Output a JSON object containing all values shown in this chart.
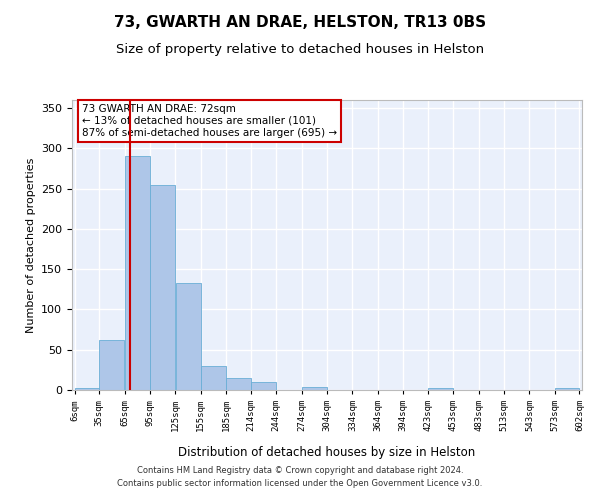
{
  "title1": "73, GWARTH AN DRAE, HELSTON, TR13 0BS",
  "title2": "Size of property relative to detached houses in Helston",
  "xlabel": "Distribution of detached houses by size in Helston",
  "ylabel": "Number of detached properties",
  "footnote1": "Contains HM Land Registry data © Crown copyright and database right 2024.",
  "footnote2": "Contains public sector information licensed under the Open Government Licence v3.0.",
  "annotation_line1": "73 GWARTH AN DRAE: 72sqm",
  "annotation_line2": "← 13% of detached houses are smaller (101)",
  "annotation_line3": "87% of semi-detached houses are larger (695) →",
  "bar_edges": [
    6,
    35,
    65,
    95,
    125,
    155,
    185,
    214,
    244,
    274,
    304,
    334,
    364,
    394,
    423,
    453,
    483,
    513,
    543,
    573,
    602
  ],
  "bar_heights": [
    2,
    62,
    291,
    255,
    133,
    30,
    15,
    10,
    0,
    4,
    0,
    0,
    0,
    0,
    2,
    0,
    0,
    0,
    0,
    2
  ],
  "bar_color": "#aec6e8",
  "bar_edgecolor": "#6aaed6",
  "property_size": 72,
  "vline_color": "#cc0000",
  "ylim": [
    0,
    360
  ],
  "yticks": [
    0,
    50,
    100,
    150,
    200,
    250,
    300,
    350
  ],
  "bg_color": "#eaf0fb",
  "grid_color": "#ffffff",
  "title1_fontsize": 11,
  "title2_fontsize": 9.5
}
